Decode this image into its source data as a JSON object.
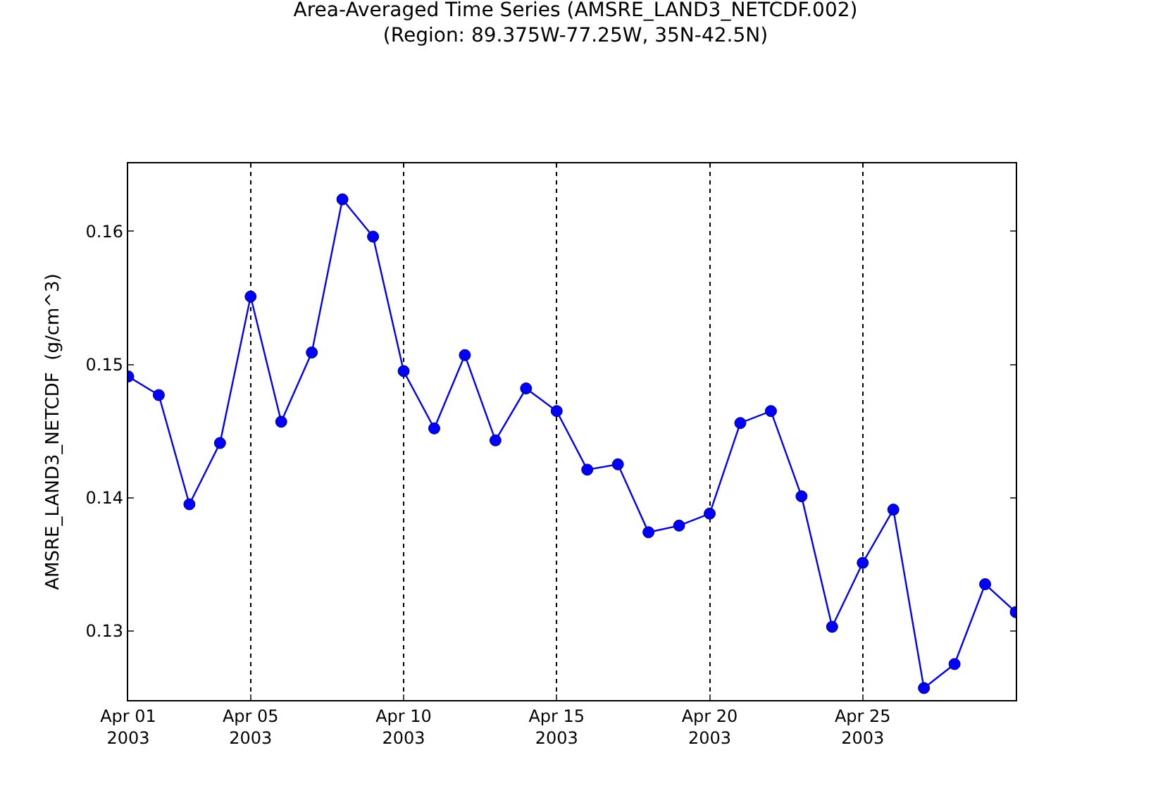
{
  "chart_data": {
    "type": "line",
    "title": "Area-Averaged Time Series (AMSRE_LAND3_NETCDF.002)",
    "subtitle": "(Region: 89.375W-77.25W, 35N-42.5N)",
    "ylabel": "AMSRE_LAND3_NETCDF  (g/cm^3)",
    "x": [
      "2003-04-01",
      "2003-04-02",
      "2003-04-03",
      "2003-04-04",
      "2003-04-05",
      "2003-04-06",
      "2003-04-07",
      "2003-04-08",
      "2003-04-09",
      "2003-04-10",
      "2003-04-11",
      "2003-04-12",
      "2003-04-13",
      "2003-04-14",
      "2003-04-15",
      "2003-04-16",
      "2003-04-17",
      "2003-04-18",
      "2003-04-19",
      "2003-04-20",
      "2003-04-21",
      "2003-04-22",
      "2003-04-23",
      "2003-04-24",
      "2003-04-25",
      "2003-04-26",
      "2003-04-27",
      "2003-04-28",
      "2003-04-29",
      "2003-04-30"
    ],
    "series": [
      {
        "color": "#0000ff",
        "values": [
          0.1491,
          0.1477,
          0.1395,
          0.1441,
          0.1551,
          0.1457,
          0.1509,
          0.1624,
          0.1596,
          0.1495,
          0.1452,
          0.1507,
          0.1443,
          0.1482,
          0.1465,
          0.1421,
          0.1425,
          0.1374,
          0.1379,
          0.1388,
          0.1456,
          0.1465,
          0.1401,
          0.1303,
          0.1351,
          0.1391,
          0.1257,
          0.1275,
          0.1335,
          0.1314
        ]
      }
    ],
    "xlim": [
      "2003-04-01",
      "2003-04-30"
    ],
    "xticks": [
      {
        "value": "2003-04-01",
        "label": "Apr 01\n2003"
      },
      {
        "value": "2003-04-05",
        "label": "Apr 05\n2003"
      },
      {
        "value": "2003-04-10",
        "label": "Apr 10\n2003"
      },
      {
        "value": "2003-04-15",
        "label": "Apr 15\n2003"
      },
      {
        "value": "2003-04-20",
        "label": "Apr 20\n2003"
      },
      {
        "value": "2003-04-25",
        "label": "Apr 25\n2003"
      }
    ],
    "ylim": [
      0.1248,
      0.1651
    ],
    "yticks": [
      0.13,
      0.14,
      0.15,
      0.16
    ],
    "grid": "x",
    "marker": "circle",
    "line_style": "solid"
  }
}
